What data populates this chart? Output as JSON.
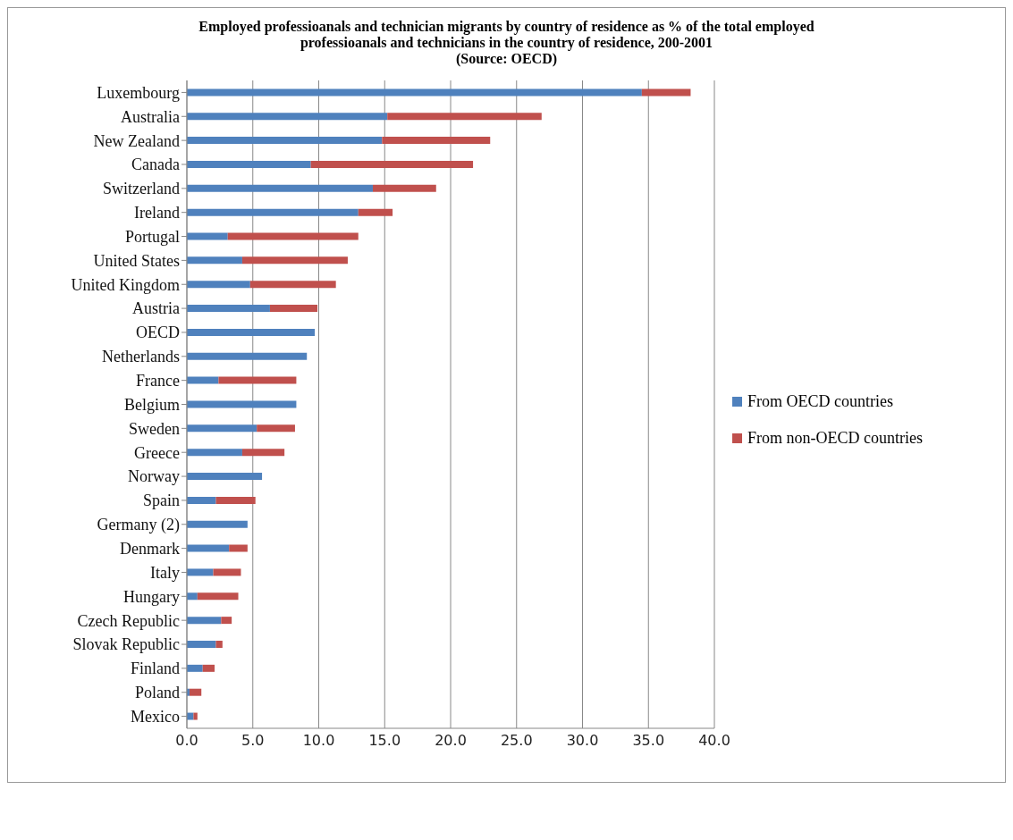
{
  "chart_data": {
    "type": "bar",
    "orientation": "horizontal",
    "stacked": true,
    "title": "Employed professioanals and technician migrants by country of residence as % of the total employed professioanals and technicians in the country of residence, 200-2001",
    "annotations": [
      "(Source: OECD)"
    ],
    "categories": [
      "Luxembourg",
      "Australia",
      "New Zealand",
      "Canada",
      "Switzerland",
      "Ireland",
      "Portugal",
      "United States",
      "United Kingdom",
      "Austria",
      "OECD",
      "Netherlands",
      "France",
      "Belgium",
      "Sweden",
      "Greece",
      "Norway",
      "Spain",
      "Germany (2)",
      "Denmark",
      "Italy",
      "Hungary",
      "Czech Republic",
      "Slovak Republic",
      "Finland",
      "Poland",
      "Mexico"
    ],
    "series": [
      {
        "name": "From OECD countries",
        "color": "#4f81bd",
        "values": [
          34.5,
          15.2,
          14.8,
          9.4,
          14.1,
          13.0,
          3.1,
          4.2,
          4.8,
          6.3,
          9.7,
          9.1,
          2.4,
          8.3,
          5.3,
          4.2,
          5.7,
          2.2,
          4.6,
          3.2,
          2.0,
          0.8,
          2.6,
          2.2,
          1.2,
          0.2,
          0.5
        ]
      },
      {
        "name": "From non-OECD countries",
        "color": "#c0504d",
        "values": [
          3.7,
          11.7,
          8.2,
          12.3,
          4.8,
          2.6,
          9.9,
          8.0,
          6.5,
          3.6,
          null,
          null,
          5.9,
          null,
          2.9,
          3.2,
          null,
          3.0,
          null,
          1.4,
          2.1,
          3.1,
          0.8,
          0.5,
          0.9,
          0.9,
          0.3
        ]
      }
    ],
    "xlim": [
      0,
      40
    ],
    "xticks": [
      {
        "value": 0,
        "label": "0.0"
      },
      {
        "value": 5,
        "label": "5.0"
      },
      {
        "value": 10,
        "label": "10.0"
      },
      {
        "value": 15,
        "label": "15.0"
      },
      {
        "value": 20,
        "label": "20.0"
      },
      {
        "value": 25,
        "label": "25.0"
      },
      {
        "value": 30,
        "label": "30.0"
      },
      {
        "value": 35,
        "label": "35.0"
      },
      {
        "value": 40,
        "label": "40.0"
      }
    ],
    "grid": "x",
    "legend": "right"
  }
}
